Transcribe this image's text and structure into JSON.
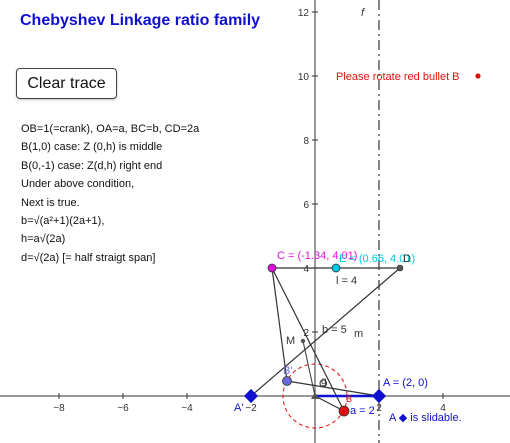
{
  "title": "Chebyshev Linkage ratio family",
  "button": {
    "label": "Clear trace"
  },
  "description": [
    "OB=1(=crank), OA=a, BC=b, CD=2a",
    "B(1,0) case: Z (0,h) is middle",
    "B(0,-1) case: Z(d,h) right end",
    "Under above condition,",
    "Next is true.",
    "b=√(a²+1)(2a+1),",
    "h=a√(2a)",
    "d=√(2a) [= half straigt span]"
  ],
  "axes": {
    "x_ticks": [
      "−8",
      "−6",
      "−4",
      "−2",
      "2",
      "4"
    ],
    "y_ticks": [
      "12",
      "10",
      "8",
      "6",
      "4",
      "2"
    ],
    "x_tick_values": [
      -8,
      -6,
      -4,
      -2,
      2,
      4
    ],
    "y_tick_values": [
      12,
      10,
      8,
      6,
      4,
      2
    ]
  },
  "line_f_label": "f",
  "rotate_note": "Please rotate red bullet B",
  "points": {
    "C_label": "C = (-1.34, 4.01)",
    "E_label": "E = (0.66, 4.01)",
    "D_label": "D",
    "M_label": "M",
    "B_label": "B",
    "Bprime_label": "B'",
    "O_label": "O",
    "Aprime_label": "A'",
    "A_label": "A = (2, 0)",
    "a_label": "a = 2",
    "l_label": "l = 4",
    "b_label": "b = 5",
    "m_label": "m",
    "g_label": "g",
    "B_small_label": "B",
    "slidable_note": "A ◆ is slidable."
  },
  "colors": {
    "title": "#1010d0",
    "red": "#e01010",
    "magenta": "#e010e0",
    "cyan": "#00c8e0",
    "blue": "#1010d0",
    "slateblue": "#6a6ad8",
    "gray": "#555555"
  }
}
